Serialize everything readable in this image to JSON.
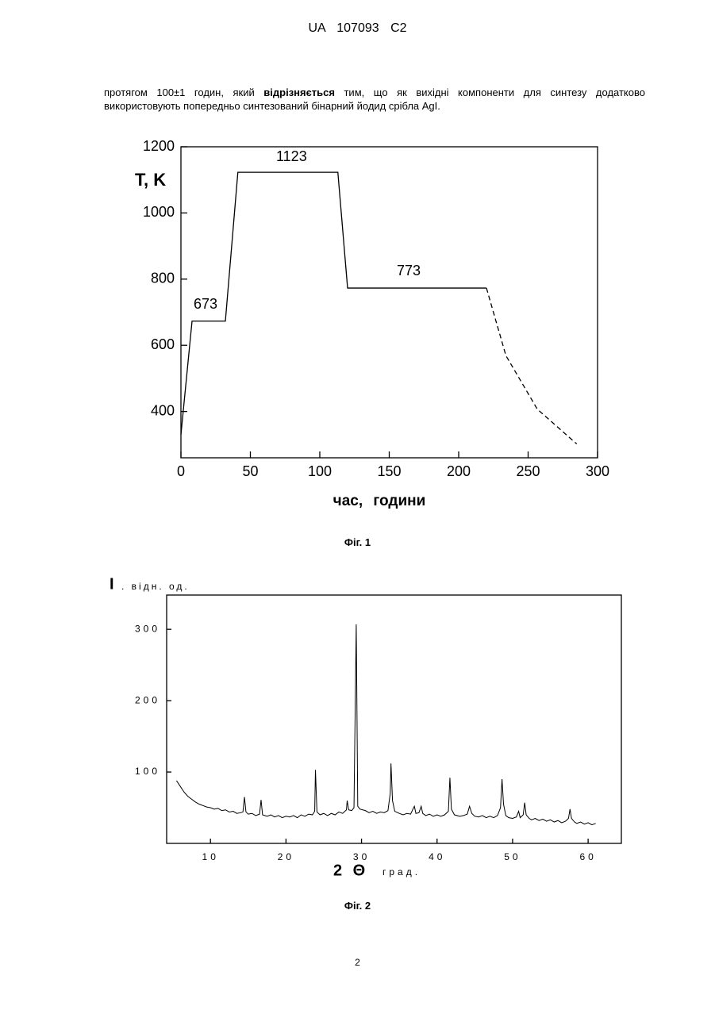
{
  "header": {
    "title": "UA 107093 C2"
  },
  "paragraph": {
    "parts": [
      "протягом 100±1 годин, який ",
      "відрізняється",
      " тим, що як вихідні компоненти для синтезу додатково використовують попередньо синтезований бінарний йодид срібла AgI."
    ]
  },
  "figures": [
    {
      "caption": "Фіг. 1",
      "chart": {
        "type": "line",
        "ylabel": "T, K",
        "xlabel": "час, години",
        "annotations": [
          "1123",
          "673",
          "773"
        ],
        "xlim": [
          0,
          300
        ],
        "xticks": [
          0,
          50,
          100,
          150,
          200,
          250,
          300
        ],
        "ylim": [
          260,
          1200
        ],
        "yticks": [
          400,
          600,
          800,
          1000,
          1200
        ],
        "series": [
          {
            "color": "#000000",
            "dashed": false,
            "x": [
              0,
              8,
              32,
              41,
              113,
              120,
              220
            ],
            "values": [
              330,
              673,
              673,
              1123,
              1123,
              773,
              773
            ]
          },
          {
            "color": "#000000",
            "dashed": true,
            "x": [
              220,
              234,
              256.6,
              285
            ],
            "values": [
              773,
              569,
              407,
              302
            ]
          }
        ]
      }
    },
    {
      "caption": "Фіг. 2",
      "chart": {
        "type": "line",
        "ylabel": "I",
        "ylabel_unit": ". відн. од.",
        "xlabel": "2 Θ",
        "xlabel_unit": "град.",
        "xlim": [
          4.2,
          64.4
        ],
        "xticks": [
          10,
          20,
          30,
          40,
          50,
          60
        ],
        "ylim": [
          0,
          348
        ],
        "yticks": [
          100,
          200,
          300
        ],
        "series": [
          {
            "color": "#000000",
            "dashed": false,
            "x": [
              5.5,
              6,
              6.5,
              7,
              7.5,
              8,
              8.5,
              9,
              9.5,
              10,
              10.5,
              11,
              11.5,
              12,
              12.5,
              13,
              13.5,
              14,
              14.3,
              14.5,
              14.7,
              15,
              15.5,
              16,
              16.5,
              16.7,
              16.9,
              17.5,
              18,
              18.5,
              19,
              19.5,
              20,
              20.5,
              21,
              21.5,
              22,
              22.5,
              23,
              23.5,
              23.8,
              23.9,
              24.1,
              24.5,
              25,
              25.5,
              26,
              26.5,
              27,
              27.5,
              28,
              28.1,
              28.3,
              28.7,
              29,
              29.3,
              29.5,
              29.8,
              30.5,
              31,
              31.5,
              32,
              32.5,
              33,
              33.5,
              33.8,
              33.9,
              34.1,
              34.4,
              35,
              35.5,
              36,
              36.5,
              36.9,
              37,
              37.2,
              37.6,
              37.9,
              38.1,
              38.5,
              39,
              39.5,
              40,
              40.5,
              41,
              41.5,
              41.7,
              41.9,
              42.3,
              43,
              43.5,
              44,
              44.3,
              44.6,
              45,
              45.5,
              46,
              46.5,
              47,
              47.5,
              48,
              48.4,
              48.6,
              48.8,
              49.1,
              49.5,
              50,
              50.5,
              50.8,
              51,
              51.4,
              51.6,
              51.8,
              52.2,
              52.5,
              53,
              53.5,
              54,
              54.5,
              55,
              55.5,
              56,
              56.5,
              57,
              57.4,
              57.6,
              57.8,
              58.2,
              58.5,
              59,
              59.5,
              60,
              60.5,
              61
            ],
            "values": [
              88,
              80,
              72,
              66,
              62,
              58,
              55,
              53,
              51,
              50,
              48,
              49,
              46,
              47,
              44,
              45,
              42,
              43,
              44,
              65,
              44,
              41,
              42,
              39,
              41,
              61,
              40,
              38,
              40,
              37,
              39,
              36,
              38,
              37,
              39,
              36,
              40,
              38,
              41,
              40,
              45,
              103,
              44,
              40,
              42,
              39,
              42,
              40,
              44,
              42,
              47,
              60,
              47,
              46,
              50,
              307,
              52,
              48,
              46,
              43,
              45,
              42,
              44,
              43,
              46,
              70,
              112,
              60,
              45,
              42,
              40,
              42,
              41,
              50,
              52,
              42,
              43,
              52,
              42,
              39,
              41,
              38,
              40,
              38,
              40,
              45,
              92,
              48,
              40,
              38,
              39,
              41,
              52,
              42,
              38,
              37,
              39,
              36,
              38,
              36,
              39,
              50,
              90,
              55,
              39,
              36,
              35,
              37,
              45,
              36,
              40,
              57,
              40,
              35,
              33,
              35,
              32,
              34,
              31,
              33,
              30,
              32,
              29,
              31,
              35,
              48,
              35,
              30,
              28,
              30,
              27,
              29,
              26,
              28
            ]
          }
        ]
      }
    }
  ],
  "page_number": "2"
}
